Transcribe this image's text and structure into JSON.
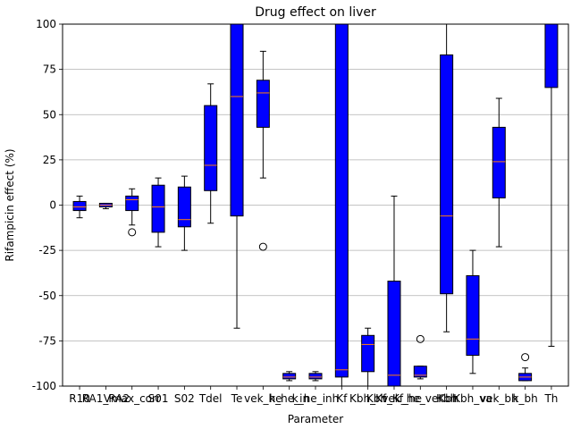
{
  "chart_data": {
    "type": "box",
    "title": "Drug effect on liver",
    "xlabel": "Parameter",
    "ylabel": "Rifampicin effect (%)",
    "ylim": [
      -100,
      100
    ],
    "yticks": [
      -100,
      -75,
      -50,
      -25,
      0,
      25,
      50,
      75,
      100
    ],
    "grid": "horizontal",
    "colors": {
      "box_fill": "#0000ff",
      "median": "#ff7f0e",
      "outlier": "#000000",
      "grid": "#b0b0b0"
    },
    "categories": [
      "R10",
      "RA1_RA2",
      "Vmax_corr",
      "S01",
      "S02",
      "Tdel",
      "Te",
      "vek_he",
      "k_he_in",
      "k_he_inh",
      "Kf",
      "Kbh_Kf",
      "Kbh_Kf_he",
      "vek_he_veKbh",
      "Kbh",
      "Kbh_va",
      "vek_bh",
      "k_bh",
      "Th"
    ],
    "boxes": [
      {
        "name": "R10",
        "whislo": -7,
        "q1": -3,
        "med": -1,
        "q3": 2,
        "whishi": 5,
        "fliers": []
      },
      {
        "name": "RA1_RA2",
        "whislo": -2,
        "q1": -1,
        "med": 0,
        "q3": 1,
        "whishi": 1,
        "fliers": []
      },
      {
        "name": "Vmax_corr",
        "whislo": -11,
        "q1": -3,
        "med": 3,
        "q3": 5,
        "whishi": 9,
        "fliers": [
          -15
        ]
      },
      {
        "name": "S01",
        "whislo": -23,
        "q1": -15,
        "med": -1,
        "q3": 11,
        "whishi": 15,
        "fliers": []
      },
      {
        "name": "S02",
        "whislo": -25,
        "q1": -12,
        "med": -8,
        "q3": 10,
        "whishi": 16,
        "fliers": []
      },
      {
        "name": "Tdel",
        "whislo": -10,
        "q1": 8,
        "med": 22,
        "q3": 55,
        "whishi": 67,
        "fliers": []
      },
      {
        "name": "Te",
        "whislo": -68,
        "q1": -6,
        "med": 60,
        "q3": 100,
        "whishi": 100,
        "fliers": []
      },
      {
        "name": "vek_he",
        "whislo": 15,
        "q1": 43,
        "med": 62,
        "q3": 69,
        "whishi": 85,
        "fliers": [
          -23
        ]
      },
      {
        "name": "k_he_in",
        "whislo": -97,
        "q1": -96,
        "med": -95,
        "q3": -93,
        "whishi": -92,
        "fliers": []
      },
      {
        "name": "k_he_inh",
        "whislo": -97,
        "q1": -96,
        "med": -95,
        "q3": -93,
        "whishi": -92,
        "fliers": []
      },
      {
        "name": "Kf",
        "whislo": -100,
        "q1": -95,
        "med": -91,
        "q3": 100,
        "whishi": 100,
        "fliers": []
      },
      {
        "name": "Kbh_Kf",
        "whislo": -100,
        "q1": -92,
        "med": -77,
        "q3": -72,
        "whishi": -68,
        "fliers": []
      },
      {
        "name": "Kbh_Kf_he",
        "whislo": -100,
        "q1": -100,
        "med": -94,
        "q3": -42,
        "whishi": 5,
        "fliers": []
      },
      {
        "name": "vek_he_veKbh",
        "whislo": -96,
        "q1": -95,
        "med": -94,
        "q3": -89,
        "whishi": -89,
        "fliers": [
          -74
        ]
      },
      {
        "name": "Kbh",
        "whislo": -70,
        "q1": -49,
        "med": -6,
        "q3": 83,
        "whishi": 100,
        "fliers": []
      },
      {
        "name": "Kbh_va",
        "whislo": -93,
        "q1": -83,
        "med": -74,
        "q3": -39,
        "whishi": -25,
        "fliers": []
      },
      {
        "name": "vek_bh",
        "whislo": -23,
        "q1": 4,
        "med": 24,
        "q3": 43,
        "whishi": 59,
        "fliers": []
      },
      {
        "name": "k_bh",
        "whislo": -97,
        "q1": -97,
        "med": -95,
        "q3": -93,
        "whishi": -90,
        "fliers": [
          -84
        ]
      },
      {
        "name": "Th",
        "whislo": -78,
        "q1": 65,
        "med": 100,
        "q3": 100,
        "whishi": 100,
        "fliers": []
      }
    ]
  }
}
